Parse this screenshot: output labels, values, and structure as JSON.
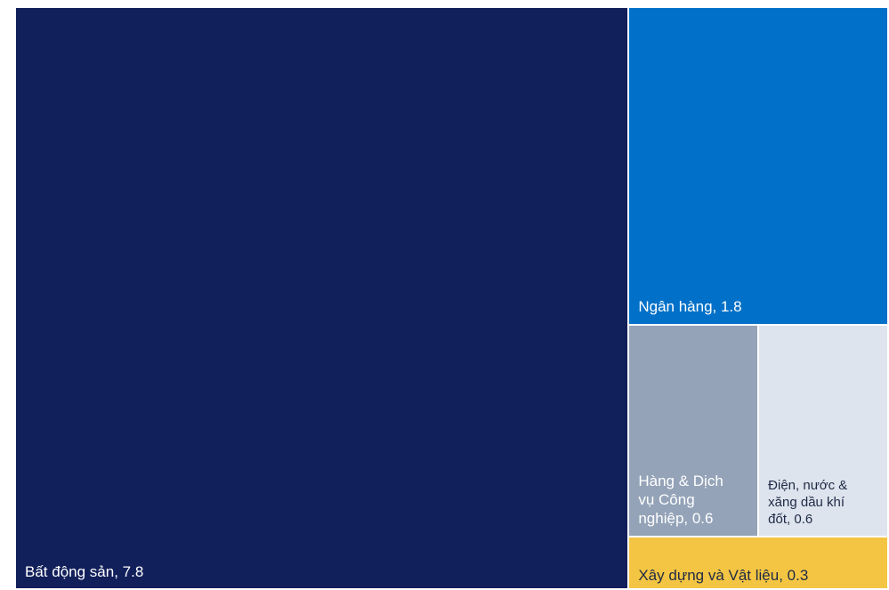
{
  "chart_data": {
    "type": "treemap",
    "title": "",
    "items": [
      {
        "label": "Bất động sản, 7.8",
        "name": "Bất động sản",
        "value": 7.8,
        "color": "#111f5b",
        "text_color": "#ffffff"
      },
      {
        "label": "Ngân hàng, 1.8",
        "name": "Ngân hàng",
        "value": 1.8,
        "color": "#0070c8",
        "text_color": "#ffffff"
      },
      {
        "label": "Hàng & Dịch\nvụ Công\nnghiệp, 0.6",
        "name": "Hàng & Dịch vụ Công nghiệp",
        "value": 0.6,
        "color": "#94a3b8",
        "text_color": "#ffffff"
      },
      {
        "label": "Điện, nước &\nxăng dầu khí\nđốt, 0.6",
        "name": "Điện, nước & xăng dầu khí đốt",
        "value": 0.6,
        "color": "#dde4ee",
        "text_color": "#1f2a44"
      },
      {
        "label": "Xây dựng và Vật liệu, 0.3",
        "name": "Xây dựng và Vật liệu",
        "value": 0.3,
        "color": "#f4c542",
        "text_color": "#1f2a44"
      }
    ]
  }
}
